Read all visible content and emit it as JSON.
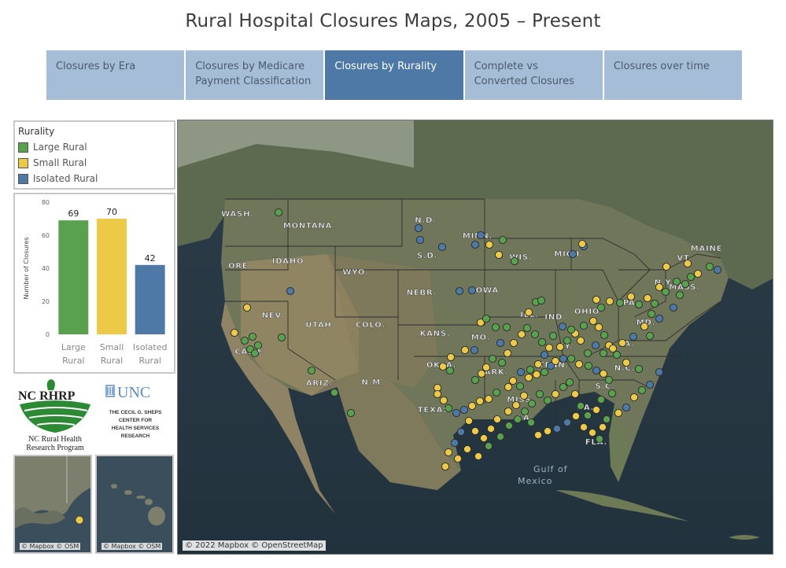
{
  "title": "Rural Hospital Closures Maps, 2005 – Present",
  "tabs": [
    {
      "label": "Closures by Era",
      "active": false
    },
    {
      "label": "Closures by Medicare Payment Classification",
      "active": false
    },
    {
      "label": "Closures by Rurality",
      "active": true
    },
    {
      "label": "Complete vs Converted Closures",
      "active": false
    },
    {
      "label": "Closures over time",
      "active": false
    }
  ],
  "legend": {
    "title": "Rurality",
    "items": [
      {
        "label": "Large Rural",
        "color": "#59a14f"
      },
      {
        "label": "Small Rural",
        "color": "#edc948"
      },
      {
        "label": "Isolated Rural",
        "color": "#4e79a7"
      }
    ]
  },
  "chart_data": {
    "type": "bar",
    "categories": [
      "Large Rural",
      "Small Rural",
      "Isolated Rural"
    ],
    "category_lines": [
      [
        "Large",
        "Rural"
      ],
      [
        "Small",
        "Rural"
      ],
      [
        "Isolated",
        "Rural"
      ]
    ],
    "values": [
      69,
      70,
      42
    ],
    "colors": [
      "#59a14f",
      "#edc948",
      "#4e79a7"
    ],
    "ylabel": "Number of Closures",
    "yticks": [
      0,
      20,
      40,
      60,
      80
    ],
    "ylim": [
      0,
      80
    ],
    "grid": false
  },
  "logos": {
    "ncrhrp_mark": "NC RHRP",
    "ncrhrp_name_1": "NC Rural Health",
    "ncrhrp_name_2": "Research Program",
    "unc_mark": "UNC",
    "sheps_lines": [
      "THE CECIL G. SHEPS",
      "CENTER FOR",
      "HEALTH SERVICES",
      "RESEARCH"
    ]
  },
  "insets": {
    "alaska_credit": "© Mapbox © OSM",
    "hawaii_credit": "© Mapbox © OSM"
  },
  "map": {
    "credit": "© 2022 Mapbox © OpenStreetMap",
    "state_labels": [
      "WASH.",
      "MONTANA",
      "N.D.",
      "MINN.",
      "MAINE",
      "ORE.",
      "IDAHO",
      "S.D.",
      "WIS.",
      "MICH.",
      "WYO.",
      "NEBR.",
      "IOWA",
      "N.Y.",
      "VT.",
      "MASS.",
      "NEV.",
      "UTAH",
      "COLO.",
      "KANS.",
      "MO.",
      "ILL.",
      "IND.",
      "OHIO",
      "PA.",
      "CALIF.",
      "MD.",
      "KY.",
      "VA.",
      "OKLA.",
      "ARK.",
      "TENN.",
      "N.C.",
      "ARIZ.",
      "N.M.",
      "S.C.",
      "MISS.",
      "GA.",
      "TEXAS",
      "LA.",
      "FLA."
    ],
    "water_label_1": "Gulf of",
    "water_label_2": "Mexico"
  }
}
